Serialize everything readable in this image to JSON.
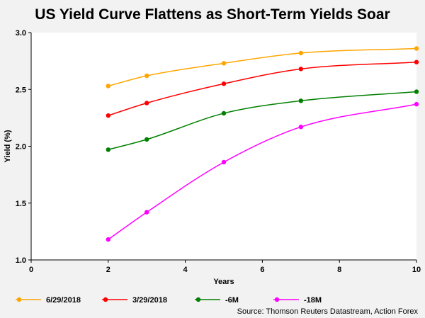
{
  "chart_data": {
    "type": "line",
    "title": "US Yield Curve Flattens as Short-Term Yields Soar",
    "xlabel": "Years",
    "ylabel": "Yield (%)",
    "xlim": [
      0,
      10
    ],
    "ylim": [
      1.0,
      3.0
    ],
    "x_ticks": [
      "0",
      "2",
      "4",
      "6",
      "8",
      "10"
    ],
    "y_ticks": [
      "1.0",
      "1.5",
      "2.0",
      "2.5",
      "3.0"
    ],
    "x": [
      2,
      3,
      5,
      7,
      10
    ],
    "series": [
      {
        "name": "6/29/2018",
        "color": "#ffa500",
        "values": [
          2.53,
          2.62,
          2.73,
          2.82,
          2.86
        ]
      },
      {
        "name": "3/29/2018",
        "color": "#ff0000",
        "values": [
          2.27,
          2.38,
          2.55,
          2.68,
          2.74
        ]
      },
      {
        "name": "-6M",
        "color": "#008000",
        "values": [
          1.97,
          2.06,
          2.29,
          2.4,
          2.48
        ]
      },
      {
        "name": "-18M",
        "color": "#ff00ff",
        "values": [
          1.18,
          1.42,
          1.86,
          2.17,
          2.37
        ]
      }
    ],
    "grid": false,
    "legend": "bottom",
    "source": "Source: Thomson Reuters Datastream, Action Forex"
  }
}
